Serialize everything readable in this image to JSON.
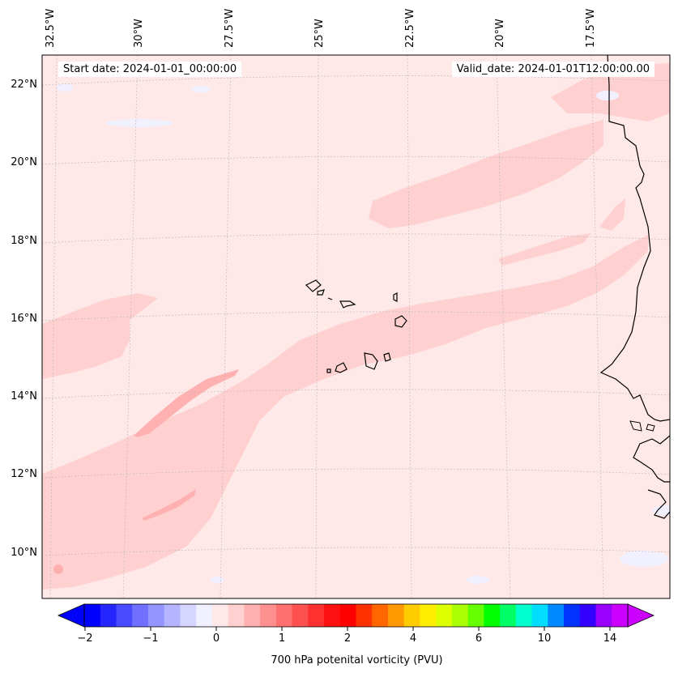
{
  "map": {
    "longitude_labels": [
      "32.5°W",
      "30°W",
      "27.5°W",
      "25°W",
      "22.5°W",
      "20°W",
      "17.5°W"
    ],
    "latitude_labels": [
      "22°N",
      "20°N",
      "18°N",
      "16°N",
      "14°N",
      "12°N",
      "10°N"
    ],
    "start_date_text": "Start date: 2024-01-01_00:00:00",
    "valid_date_text": "Valid_date: 2024-01-01T12:00:00.00"
  },
  "colorbar": {
    "label": "700 hPa potenital vorticity (PVU)",
    "tick_labels": [
      "−2",
      "−1",
      "0",
      "1",
      "2",
      "4",
      "6",
      "10",
      "14"
    ],
    "colors": [
      "#0000ff",
      "#2525ff",
      "#4a4aff",
      "#7070ff",
      "#9595ff",
      "#b5b5ff",
      "#d5d5ff",
      "#f0f0ff",
      "#ffe8e8",
      "#ffd0d0",
      "#ffb0b0",
      "#ff9090",
      "#ff7070",
      "#ff5050",
      "#ff3030",
      "#ff1010",
      "#ff0000",
      "#ff3300",
      "#ff6600",
      "#ff9900",
      "#ffcc00",
      "#ffee00",
      "#ddff00",
      "#aaff00",
      "#66ff00",
      "#00ff00",
      "#00ff66",
      "#00ffcc",
      "#00ddff",
      "#0088ff",
      "#0033ff",
      "#3300ff",
      "#9900ff",
      "#cc00ff"
    ]
  },
  "fill_colors": {
    "background": "#ffe8e8",
    "band": "#ffd0d0",
    "core": "#ffb0b0",
    "negative": "#f0f0ff"
  }
}
